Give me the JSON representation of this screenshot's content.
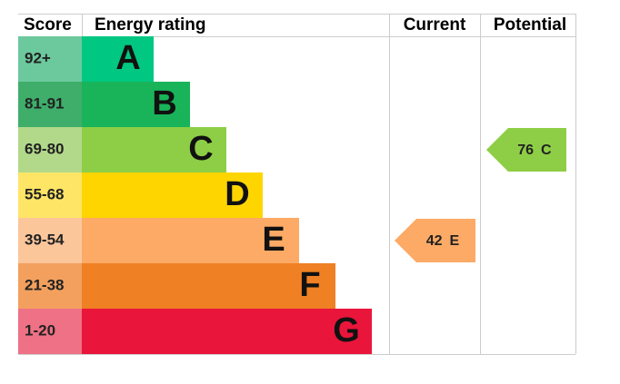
{
  "header": {
    "score": "Score",
    "rating": "Energy rating",
    "current": "Current",
    "potential": "Potential"
  },
  "bands": [
    {
      "score": "92+",
      "letter": "A"
    },
    {
      "score": "81-91",
      "letter": "B"
    },
    {
      "score": "69-80",
      "letter": "C"
    },
    {
      "score": "55-68",
      "letter": "D"
    },
    {
      "score": "39-54",
      "letter": "E"
    },
    {
      "score": "21-38",
      "letter": "F"
    },
    {
      "score": "1-20",
      "letter": "G"
    }
  ],
  "current": {
    "value": 42,
    "letter": "E"
  },
  "potential": {
    "value": 76,
    "letter": "C"
  }
}
